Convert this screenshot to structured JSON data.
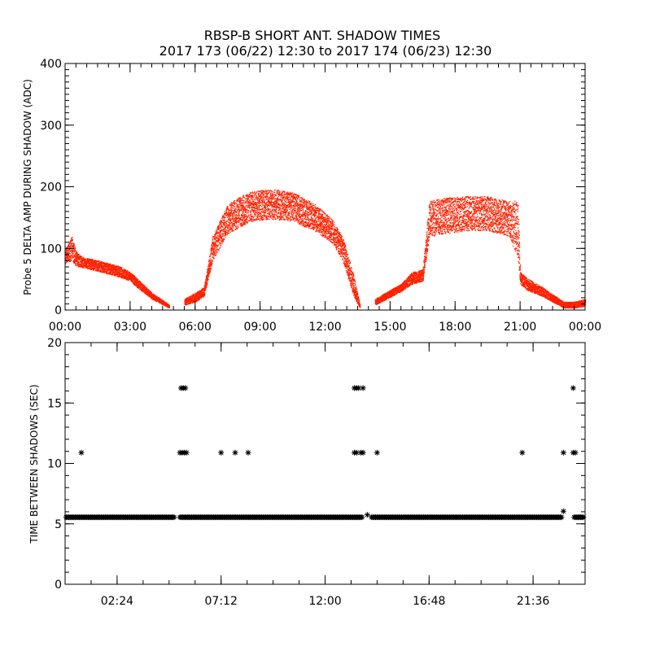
{
  "title_line1": "RBSP-B SHORT ANT. SHADOW TIMES",
  "title_line2": "2017 173 (06/22) 12:30 to 2017 174 (06/23) 12:30",
  "chart_data": [
    {
      "type": "scatter",
      "ylabel": "Probe 5 DELTA AMP DURING SHADOW (ADC)",
      "xlim": [
        0,
        24
      ],
      "ylim": [
        0,
        400
      ],
      "x_ticks": [
        0,
        3,
        6,
        9,
        12,
        15,
        18,
        21,
        24
      ],
      "x_tick_labels": [
        "00:00",
        "03:00",
        "06:00",
        "09:00",
        "12:00",
        "15:00",
        "18:00",
        "21:00",
        "00:00"
      ],
      "y_ticks": [
        0,
        100,
        200,
        300,
        400
      ],
      "y_tick_labels": [
        "0",
        "100",
        "200",
        "300",
        "400"
      ],
      "color": "#ff2200",
      "envelope": [
        {
          "x": [
            0.0,
            0.3,
            0.5,
            0.8,
            1.5,
            2.5,
            3.0,
            3.3,
            4.0,
            4.8
          ],
          "upper": [
            100,
            120,
            95,
            85,
            80,
            70,
            60,
            50,
            25,
            5
          ],
          "lower": [
            75,
            80,
            70,
            68,
            62,
            52,
            45,
            35,
            15,
            0
          ]
        },
        {
          "x": [
            5.5,
            6.0,
            6.4,
            6.8,
            7.5,
            8.5,
            9.5,
            10.5,
            11.5,
            12.3,
            12.8,
            13.3,
            13.6
          ],
          "upper": [
            15,
            25,
            35,
            120,
            175,
            195,
            200,
            195,
            175,
            150,
            120,
            55,
            5
          ],
          "lower": [
            5,
            10,
            20,
            80,
            125,
            145,
            150,
            145,
            130,
            110,
            80,
            20,
            0
          ]
        },
        {
          "x": [
            14.3,
            15.0,
            15.5,
            16.0,
            16.5,
            16.8,
            17.5,
            18.5,
            19.5,
            20.5,
            20.9,
            21.0,
            21.3,
            22.0,
            23.0,
            23.5,
            24.0
          ],
          "upper": [
            15,
            30,
            40,
            60,
            65,
            180,
            185,
            188,
            188,
            180,
            180,
            60,
            50,
            35,
            10,
            10,
            15
          ],
          "lower": [
            5,
            18,
            28,
            40,
            45,
            120,
            125,
            130,
            130,
            120,
            80,
            40,
            30,
            20,
            0,
            0,
            3
          ]
        }
      ]
    },
    {
      "type": "scatter",
      "ylabel": "TIME BETWEEN SHADOWS (SEC)",
      "xlim": [
        0,
        24
      ],
      "ylim": [
        0,
        20
      ],
      "x_ticks": [
        2.4,
        7.2,
        12.0,
        16.8,
        21.6
      ],
      "x_tick_labels": [
        "02:24",
        "07:12",
        "12:00",
        "16:48",
        "21:36"
      ],
      "y_ticks": [
        0,
        5,
        10,
        15,
        20
      ],
      "y_tick_labels": [
        "0",
        "5",
        "10",
        "15",
        "20"
      ],
      "marker": "asterisk",
      "color": "#000000",
      "baseline_value": 5.4,
      "baseline_ranges": [
        [
          0.05,
          5.05
        ],
        [
          5.3,
          13.75
        ],
        [
          14.15,
          22.95
        ],
        [
          23.5,
          23.95
        ]
      ],
      "points": [
        {
          "x": 0.75,
          "y": 10.8
        },
        {
          "x": 5.35,
          "y": 16.2
        },
        {
          "x": 5.45,
          "y": 16.2
        },
        {
          "x": 5.55,
          "y": 16.2
        },
        {
          "x": 5.3,
          "y": 10.8
        },
        {
          "x": 5.4,
          "y": 10.8
        },
        {
          "x": 5.5,
          "y": 10.8
        },
        {
          "x": 5.6,
          "y": 10.8
        },
        {
          "x": 7.2,
          "y": 10.8
        },
        {
          "x": 7.85,
          "y": 10.8
        },
        {
          "x": 8.45,
          "y": 10.8
        },
        {
          "x": 13.35,
          "y": 16.2
        },
        {
          "x": 13.45,
          "y": 16.2
        },
        {
          "x": 13.55,
          "y": 16.2
        },
        {
          "x": 13.75,
          "y": 16.2
        },
        {
          "x": 13.35,
          "y": 10.8
        },
        {
          "x": 13.45,
          "y": 10.8
        },
        {
          "x": 13.65,
          "y": 10.8
        },
        {
          "x": 13.75,
          "y": 10.8
        },
        {
          "x": 13.95,
          "y": 5.6
        },
        {
          "x": 14.4,
          "y": 10.8
        },
        {
          "x": 21.1,
          "y": 10.8
        },
        {
          "x": 23.0,
          "y": 10.8
        },
        {
          "x": 23.0,
          "y": 5.9
        },
        {
          "x": 23.45,
          "y": 10.8
        },
        {
          "x": 23.55,
          "y": 10.8
        },
        {
          "x": 23.45,
          "y": 16.2
        }
      ]
    }
  ]
}
